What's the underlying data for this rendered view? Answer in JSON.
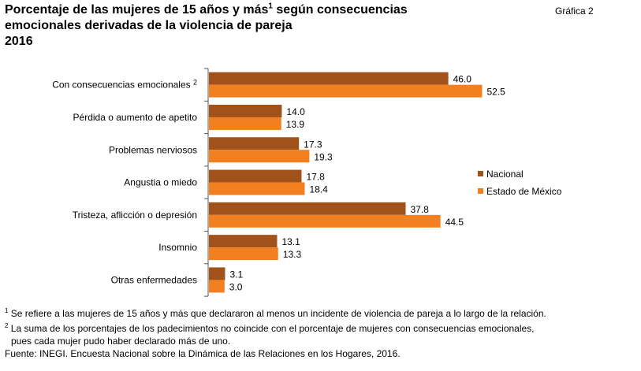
{
  "title": {
    "line1": "Porcentaje de las mujeres de 15 años y más",
    "sup": "1",
    "line1_rest": " según consecuencias",
    "line2": "emocionales derivadas de la violencia de pareja",
    "line3": "2016"
  },
  "grafica_label": "Gráfica 2",
  "chart_data": {
    "type": "bar",
    "orientation": "horizontal",
    "categories": [
      "Con consecuencias emocionales",
      "Pérdida o aumento de  apetito",
      "Problemas nerviosos",
      "Angustia o miedo",
      "Tristeza, aflicción o depresión",
      "Insomnio",
      "Otras enfermedades"
    ],
    "category_superscripts": [
      "2",
      "",
      "",
      "",
      "",
      "",
      ""
    ],
    "series": [
      {
        "name": "Nacional",
        "color": "#A0521A",
        "values": [
          46.0,
          14.0,
          17.3,
          17.8,
          37.8,
          13.1,
          3.1
        ]
      },
      {
        "name": "Estado de México",
        "color": "#F28020",
        "values": [
          52.5,
          13.9,
          19.3,
          18.4,
          44.5,
          13.3,
          3.0
        ]
      }
    ],
    "xlim": [
      0,
      60
    ],
    "legend_position": "right",
    "grid": false
  },
  "notes": {
    "note1_sup": "1",
    "note1": " Se refiere a las mujeres de 15 años y más que declararon al menos un incidente de violencia de pareja a lo largo de la relación.",
    "note2_sup": "2",
    "note2": " La suma de los porcentajes de los padecimientos no coincide con el porcentaje de mujeres con consecuencias emocionales,",
    "note2_cont": "pues cada mujer pudo haber declarado más de uno.",
    "source": "Fuente: INEGI. Encuesta Nacional sobre la Dinámica de las Relaciones en los Hogares, 2016."
  }
}
